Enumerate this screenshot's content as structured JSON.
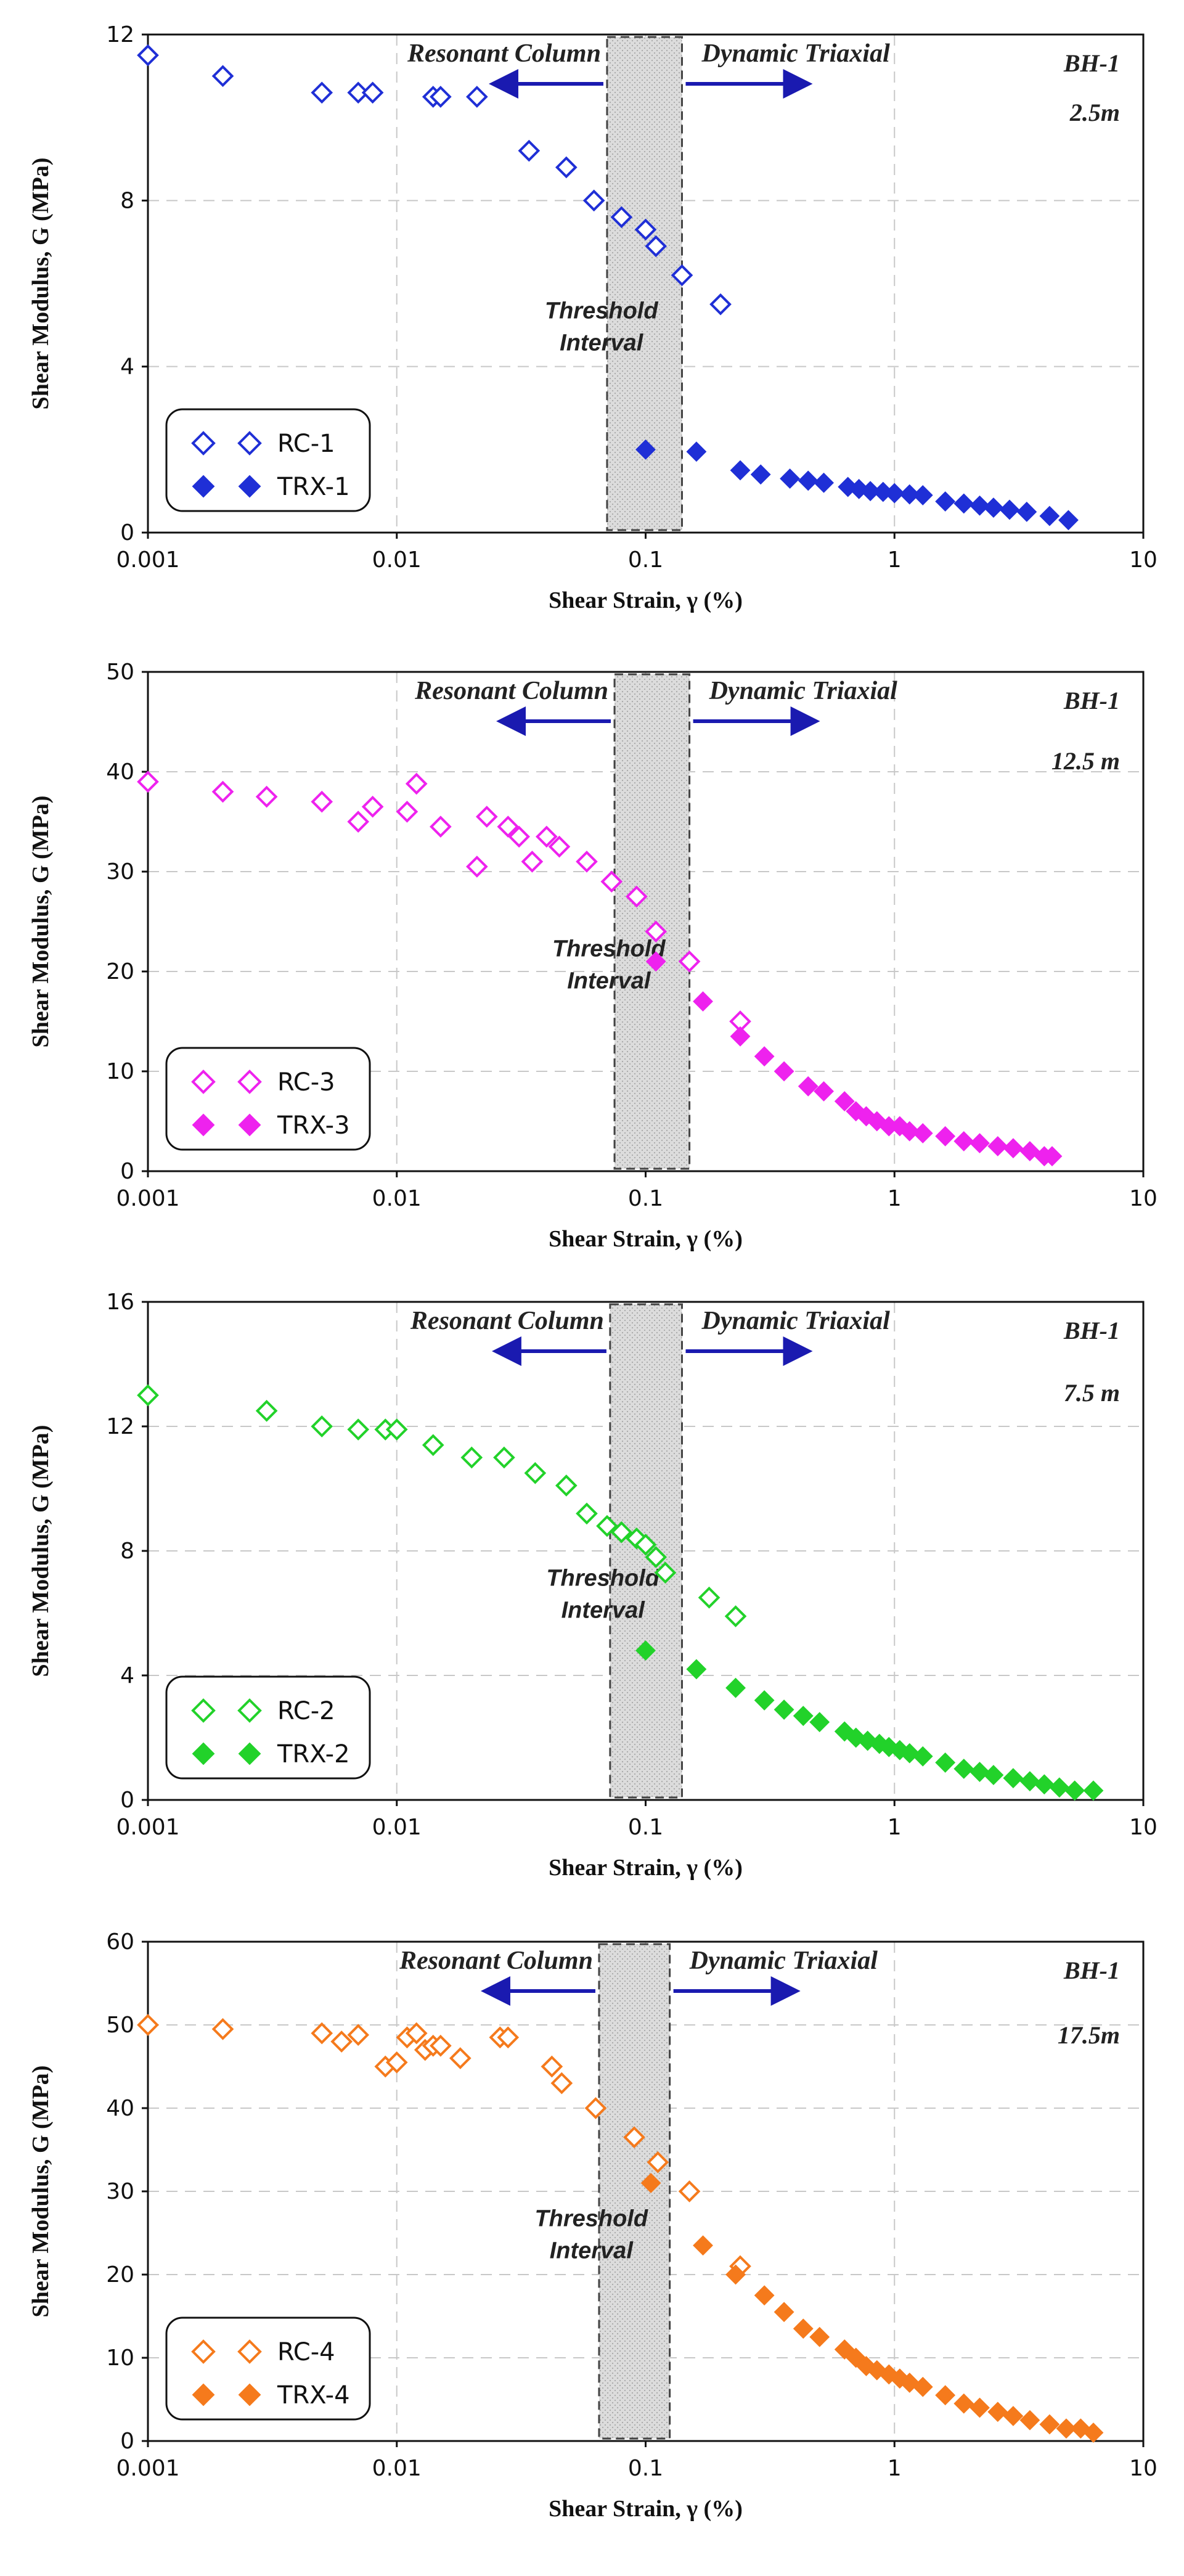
{
  "chart_data": [
    {
      "type": "scatter",
      "xscale": "log",
      "xlim": [
        0.001,
        10
      ],
      "ylim": [
        0,
        12
      ],
      "yticks": [
        0,
        4,
        8,
        12
      ],
      "xticks": [
        0.001,
        0.01,
        0.1,
        1,
        10
      ],
      "xtick_labels": [
        "0.001",
        "0.01",
        "0.1",
        "1",
        "10"
      ],
      "xlabel": "Shear Strain, γ (%)",
      "ylabel": "Shear Modulus, G (MPa)",
      "color": "#1f2fd6",
      "borehole": "BH-1",
      "depth": "2.5m",
      "threshold": [
        0.07,
        0.14
      ],
      "threshold_label": [
        "Threshold",
        "Interval"
      ],
      "left_arrow_label": "Resonant Column",
      "right_arrow_label": "Dynamic Triaxial",
      "series": [
        {
          "name": "RC-1",
          "marker": "open-diamond",
          "x": [
            0.001,
            0.002,
            0.005,
            0.007,
            0.008,
            0.014,
            0.015,
            0.021,
            0.034,
            0.048,
            0.062,
            0.08,
            0.1,
            0.11,
            0.14,
            0.2
          ],
          "y": [
            11.5,
            11.0,
            10.6,
            10.6,
            10.6,
            10.5,
            10.5,
            10.5,
            9.2,
            8.8,
            8.0,
            7.6,
            7.3,
            6.9,
            6.2,
            5.5
          ]
        },
        {
          "name": "TRX-1",
          "marker": "filled-diamond",
          "x": [
            0.1,
            0.16,
            0.24,
            0.29,
            0.38,
            0.45,
            0.52,
            0.65,
            0.72,
            0.8,
            0.9,
            1.0,
            1.15,
            1.3,
            1.6,
            1.9,
            2.2,
            2.5,
            2.9,
            3.4,
            4.2,
            5.0
          ],
          "y": [
            2.0,
            1.95,
            1.5,
            1.4,
            1.3,
            1.25,
            1.2,
            1.1,
            1.05,
            1.0,
            0.98,
            0.95,
            0.92,
            0.9,
            0.75,
            0.7,
            0.65,
            0.6,
            0.55,
            0.5,
            0.4,
            0.3
          ]
        }
      ]
    },
    {
      "type": "scatter",
      "xscale": "log",
      "xlim": [
        0.001,
        10
      ],
      "ylim": [
        0,
        50
      ],
      "yticks": [
        0,
        10,
        20,
        30,
        40,
        50
      ],
      "xticks": [
        0.001,
        0.01,
        0.1,
        1,
        10
      ],
      "xtick_labels": [
        "0.001",
        "0.01",
        "0.1",
        "1",
        "10"
      ],
      "xlabel": "Shear Strain, γ (%)",
      "ylabel": "Shear Modulus, G (MPa)",
      "color": "#ee22ee",
      "borehole": "BH-1",
      "depth": "12.5 m",
      "threshold": [
        0.075,
        0.15
      ],
      "threshold_label": [
        "Threshold",
        "Interval"
      ],
      "left_arrow_label": "Resonant Column",
      "right_arrow_label": "Dynamic Triaxial",
      "series": [
        {
          "name": "RC-3",
          "marker": "open-diamond",
          "x": [
            0.001,
            0.002,
            0.003,
            0.005,
            0.007,
            0.008,
            0.011,
            0.012,
            0.015,
            0.021,
            0.023,
            0.028,
            0.031,
            0.035,
            0.04,
            0.045,
            0.058,
            0.073,
            0.092,
            0.11,
            0.15,
            0.24
          ],
          "y": [
            39.0,
            38.0,
            37.5,
            37.0,
            35.0,
            36.5,
            36.0,
            38.8,
            34.5,
            30.5,
            35.5,
            34.5,
            33.5,
            31.0,
            33.5,
            32.5,
            31.0,
            29.0,
            27.5,
            24.0,
            21.0,
            15.0
          ]
        },
        {
          "name": "TRX-3",
          "marker": "filled-diamond",
          "x": [
            0.11,
            0.17,
            0.24,
            0.3,
            0.36,
            0.45,
            0.52,
            0.63,
            0.7,
            0.77,
            0.85,
            0.95,
            1.05,
            1.15,
            1.3,
            1.6,
            1.9,
            2.2,
            2.6,
            3.0,
            3.5,
            4.0,
            4.3
          ],
          "y": [
            21.0,
            17.0,
            13.5,
            11.5,
            10.0,
            8.5,
            8.0,
            7.0,
            6.0,
            5.5,
            5.0,
            4.5,
            4.5,
            4.0,
            3.8,
            3.5,
            3.0,
            2.8,
            2.5,
            2.3,
            2.0,
            1.5,
            1.5
          ]
        }
      ]
    },
    {
      "type": "scatter",
      "xscale": "log",
      "xlim": [
        0.001,
        10
      ],
      "ylim": [
        0,
        16
      ],
      "yticks": [
        0,
        4,
        8,
        12,
        16
      ],
      "xticks": [
        0.001,
        0.01,
        0.1,
        1,
        10
      ],
      "xtick_labels": [
        "0.001",
        "0.01",
        "0.1",
        "1",
        "10"
      ],
      "xlabel": "Shear Strain, γ (%)",
      "ylabel": "Shear Modulus, G (MPa)",
      "color": "#22d22a",
      "borehole": "BH-1",
      "depth": "7.5 m",
      "threshold": [
        0.072,
        0.14
      ],
      "threshold_label": [
        "Threshold",
        "Interval"
      ],
      "left_arrow_label": "Resonant Column",
      "right_arrow_label": "Dynamic Triaxial",
      "series": [
        {
          "name": "RC-2",
          "marker": "open-diamond",
          "x": [
            0.001,
            0.003,
            0.005,
            0.007,
            0.009,
            0.01,
            0.014,
            0.02,
            0.027,
            0.036,
            0.048,
            0.058,
            0.07,
            0.08,
            0.092,
            0.1,
            0.11,
            0.12,
            0.18,
            0.23
          ],
          "y": [
            13.0,
            12.5,
            12.0,
            11.9,
            11.9,
            11.9,
            11.4,
            11.0,
            11.0,
            10.5,
            10.1,
            9.2,
            8.8,
            8.6,
            8.4,
            8.2,
            7.8,
            7.3,
            6.5,
            5.9
          ]
        },
        {
          "name": "TRX-2",
          "marker": "filled-diamond",
          "x": [
            0.1,
            0.16,
            0.23,
            0.3,
            0.36,
            0.43,
            0.5,
            0.63,
            0.7,
            0.78,
            0.87,
            0.95,
            1.05,
            1.15,
            1.3,
            1.6,
            1.9,
            2.2,
            2.5,
            3.0,
            3.5,
            4.0,
            4.6,
            5.3,
            6.3
          ],
          "y": [
            4.8,
            4.2,
            3.6,
            3.2,
            2.9,
            2.7,
            2.5,
            2.2,
            2.0,
            1.9,
            1.8,
            1.7,
            1.6,
            1.5,
            1.4,
            1.2,
            1.0,
            0.9,
            0.8,
            0.7,
            0.6,
            0.5,
            0.4,
            0.3,
            0.3
          ]
        }
      ]
    },
    {
      "type": "scatter",
      "xscale": "log",
      "xlim": [
        0.001,
        10
      ],
      "ylim": [
        0,
        60
      ],
      "yticks": [
        0,
        10,
        20,
        30,
        40,
        50,
        60
      ],
      "xticks": [
        0.001,
        0.01,
        0.1,
        1,
        10
      ],
      "xtick_labels": [
        "0.001",
        "0.01",
        "0.1",
        "1",
        "10"
      ],
      "xlabel": "Shear Strain, γ (%)",
      "ylabel": "Shear Modulus, G (MPa)",
      "color": "#f57a1c",
      "borehole": "BH-1",
      "depth": "17.5m",
      "threshold": [
        0.065,
        0.125
      ],
      "threshold_label": [
        "Threshold",
        "Interval"
      ],
      "left_arrow_label": "Resonant Column",
      "right_arrow_label": "Dynamic Triaxial",
      "series": [
        {
          "name": "RC-4",
          "marker": "open-diamond",
          "x": [
            0.001,
            0.002,
            0.005,
            0.006,
            0.007,
            0.009,
            0.01,
            0.011,
            0.012,
            0.013,
            0.014,
            0.015,
            0.018,
            0.026,
            0.028,
            0.042,
            0.046,
            0.063,
            0.09,
            0.112,
            0.15,
            0.24
          ],
          "y": [
            50.0,
            49.5,
            49.0,
            48.0,
            48.8,
            45.0,
            45.5,
            48.5,
            49.0,
            47.0,
            47.5,
            47.5,
            46.0,
            48.5,
            48.5,
            45.0,
            43.0,
            40.0,
            36.5,
            33.5,
            30.0,
            21.0
          ]
        },
        {
          "name": "TRX-4",
          "marker": "filled-diamond",
          "x": [
            0.105,
            0.17,
            0.23,
            0.3,
            0.36,
            0.43,
            0.5,
            0.63,
            0.7,
            0.77,
            0.85,
            0.95,
            1.05,
            1.15,
            1.3,
            1.6,
            1.9,
            2.2,
            2.6,
            3.0,
            3.5,
            4.2,
            4.9,
            5.6,
            6.3
          ],
          "y": [
            31.0,
            23.5,
            20.0,
            17.5,
            15.5,
            13.5,
            12.5,
            11.0,
            10.0,
            9.0,
            8.5,
            8.0,
            7.5,
            7.0,
            6.5,
            5.5,
            4.5,
            4.0,
            3.5,
            3.0,
            2.5,
            2.0,
            1.5,
            1.5,
            1.0
          ]
        }
      ]
    }
  ]
}
